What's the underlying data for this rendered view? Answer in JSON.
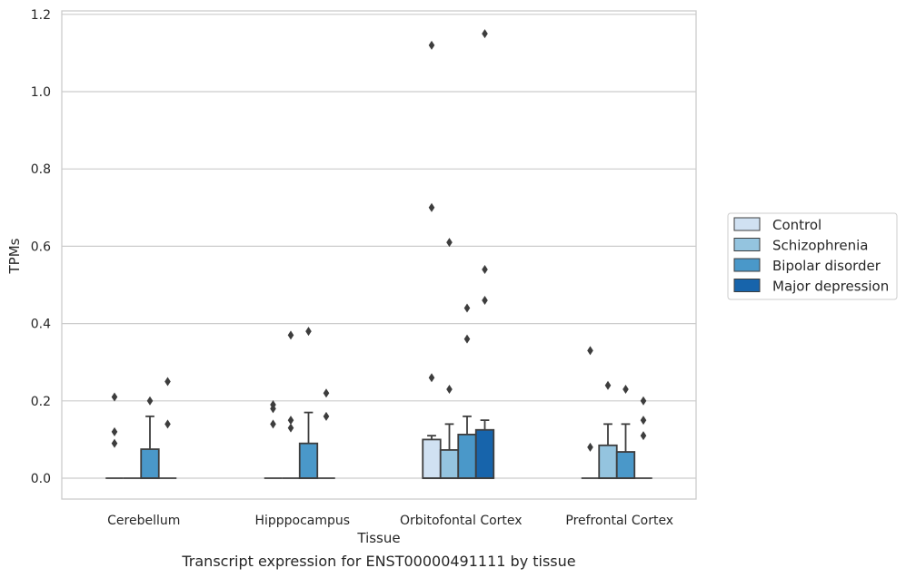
{
  "chart_data": {
    "type": "box",
    "xlabel": "Tissue",
    "ylabel": "TPMs",
    "caption": "Transcript expression for ENST00000491111 by tissue",
    "ylim": [
      -0.055,
      1.21
    ],
    "yticks": [
      "0.0",
      "0.2",
      "0.4",
      "0.6",
      "0.8",
      "1.0",
      "1.2"
    ],
    "grid": "horizontal",
    "legend_position": "right",
    "categories": [
      "Cerebellum",
      "Hipppocampus",
      "Orbitofontal Cortex",
      "Prefrontal Cortex"
    ],
    "series": [
      {
        "name": "Control",
        "color": "#d0e1f2",
        "boxes": [
          {
            "q1": 0,
            "median": 0,
            "q3": 0,
            "whisker_low": 0,
            "whisker_high": 0,
            "outliers": [
              0.21,
              0.12,
              0.09
            ]
          },
          {
            "q1": 0,
            "median": 0,
            "q3": 0,
            "whisker_low": 0,
            "whisker_high": 0,
            "outliers": [
              0.19,
              0.18,
              0.14
            ]
          },
          {
            "q1": 0,
            "median": 0,
            "q3": 0.1,
            "whisker_low": 0,
            "whisker_high": 0.11,
            "outliers": [
              1.12,
              0.7,
              0.26
            ]
          },
          {
            "q1": 0,
            "median": 0,
            "q3": 0,
            "whisker_low": 0,
            "whisker_high": 0,
            "outliers": [
              0.33,
              0.08
            ]
          }
        ]
      },
      {
        "name": "Schizophrenia",
        "color": "#94c4df",
        "boxes": [
          {
            "q1": 0,
            "median": 0,
            "q3": 0,
            "whisker_low": 0,
            "whisker_high": 0,
            "outliers": []
          },
          {
            "q1": 0,
            "median": 0,
            "q3": 0,
            "whisker_low": 0,
            "whisker_high": 0,
            "outliers": [
              0.37,
              0.15,
              0.13
            ]
          },
          {
            "q1": 0,
            "median": 0,
            "q3": 0.073,
            "whisker_low": 0,
            "whisker_high": 0.14,
            "outliers": [
              0.61,
              0.23
            ]
          },
          {
            "q1": 0,
            "median": 0,
            "q3": 0.085,
            "whisker_low": 0,
            "whisker_high": 0.14,
            "outliers": [
              0.24
            ]
          }
        ]
      },
      {
        "name": "Bipolar disorder",
        "color": "#4a98c9",
        "boxes": [
          {
            "q1": 0,
            "median": 0,
            "q3": 0.075,
            "whisker_low": 0,
            "whisker_high": 0.16,
            "outliers": [
              0.2
            ]
          },
          {
            "q1": 0,
            "median": 0,
            "q3": 0.09,
            "whisker_low": 0,
            "whisker_high": 0.17,
            "outliers": [
              0.38
            ]
          },
          {
            "q1": 0,
            "median": 0,
            "q3": 0.113,
            "whisker_low": 0,
            "whisker_high": 0.16,
            "outliers": [
              0.44,
              0.36
            ]
          },
          {
            "q1": 0,
            "median": 0,
            "q3": 0.068,
            "whisker_low": 0,
            "whisker_high": 0.14,
            "outliers": [
              0.23
            ]
          }
        ]
      },
      {
        "name": "Major depression",
        "color": "#1764ab",
        "boxes": [
          {
            "q1": 0,
            "median": 0,
            "q3": 0,
            "whisker_low": 0,
            "whisker_high": 0,
            "outliers": [
              0.25,
              0.14
            ]
          },
          {
            "q1": 0,
            "median": 0,
            "q3": 0,
            "whisker_low": 0,
            "whisker_high": 0,
            "outliers": [
              0.22,
              0.16
            ]
          },
          {
            "q1": 0,
            "median": 0,
            "q3": 0.125,
            "whisker_low": 0,
            "whisker_high": 0.15,
            "outliers": [
              1.15,
              0.54,
              0.46
            ]
          },
          {
            "q1": 0,
            "median": 0,
            "q3": 0,
            "whisker_low": 0,
            "whisker_high": 0,
            "outliers": [
              0.2,
              0.15,
              0.11
            ]
          }
        ]
      }
    ]
  }
}
